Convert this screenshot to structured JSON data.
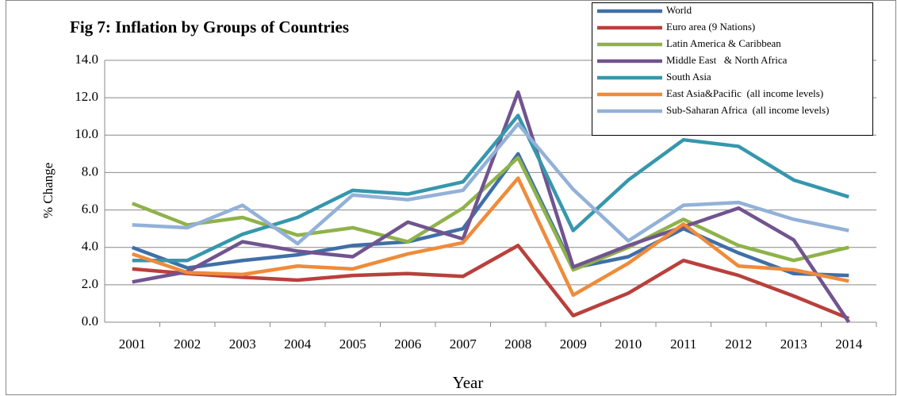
{
  "chart_data": {
    "type": "line",
    "title": "Fig 7: Inflation by Groups of Countries",
    "x_label": "Year",
    "y_label": "% Change",
    "categories": [
      "2001",
      "2002",
      "2003",
      "2004",
      "2005",
      "2006",
      "2007",
      "2008",
      "2009",
      "2010",
      "2011",
      "2012",
      "2013",
      "2014"
    ],
    "ylim": [
      0,
      14
    ],
    "yticks": [
      {
        "value": 0,
        "label": "0.0"
      },
      {
        "value": 2,
        "label": "2.0"
      },
      {
        "value": 4,
        "label": "4.0"
      },
      {
        "value": 6,
        "label": "6.0"
      },
      {
        "value": 8,
        "label": "8.0"
      },
      {
        "value": 10,
        "label": "10.0"
      },
      {
        "value": 12,
        "label": "12.0"
      },
      {
        "value": 14,
        "label": "14.0"
      }
    ],
    "grid": true,
    "legend": "top-right",
    "series": [
      {
        "name": "World",
        "color": "#3f6fa8",
        "values": [
          4.0,
          2.9,
          3.3,
          3.6,
          4.1,
          4.3,
          5.0,
          9.0,
          2.9,
          3.5,
          5.0,
          3.7,
          2.6,
          2.5
        ]
      },
      {
        "name": "Euro area (9 Nations)",
        "color": "#b9403c",
        "values": [
          2.85,
          2.6,
          2.4,
          2.25,
          2.5,
          2.6,
          2.45,
          4.1,
          0.35,
          1.55,
          3.3,
          2.5,
          1.4,
          0.2
        ]
      },
      {
        "name": "Latin America & Caribbean",
        "color": "#8fb24a",
        "values": [
          6.35,
          5.2,
          5.6,
          4.65,
          5.05,
          4.3,
          6.1,
          8.8,
          2.8,
          4.0,
          5.5,
          4.1,
          3.3,
          4.0
        ]
      },
      {
        "name": "Middle East   & North Africa",
        "color": "#71548f",
        "values": [
          2.15,
          2.7,
          4.3,
          3.8,
          3.5,
          5.35,
          4.45,
          12.3,
          2.95,
          4.1,
          5.1,
          6.1,
          4.4,
          0.0
        ]
      },
      {
        "name": "South Asia",
        "color": "#3697ac",
        "values": [
          3.3,
          3.3,
          4.7,
          5.6,
          7.05,
          6.85,
          7.5,
          11.05,
          4.9,
          7.6,
          9.75,
          9.4,
          7.6,
          6.7
        ]
      },
      {
        "name": "East Asia&Pacific  (all income levels)",
        "color": "#ef8b3a",
        "values": [
          3.65,
          2.65,
          2.55,
          3.0,
          2.85,
          3.65,
          4.25,
          7.7,
          1.45,
          3.15,
          5.25,
          3.0,
          2.8,
          2.2
        ]
      },
      {
        "name": "Sub-Saharan Africa  (all income levels)",
        "color": "#93b1d8",
        "values": [
          5.2,
          5.05,
          6.25,
          4.2,
          6.8,
          6.55,
          7.05,
          10.6,
          7.1,
          4.35,
          6.25,
          6.4,
          5.5,
          4.9
        ]
      }
    ]
  }
}
